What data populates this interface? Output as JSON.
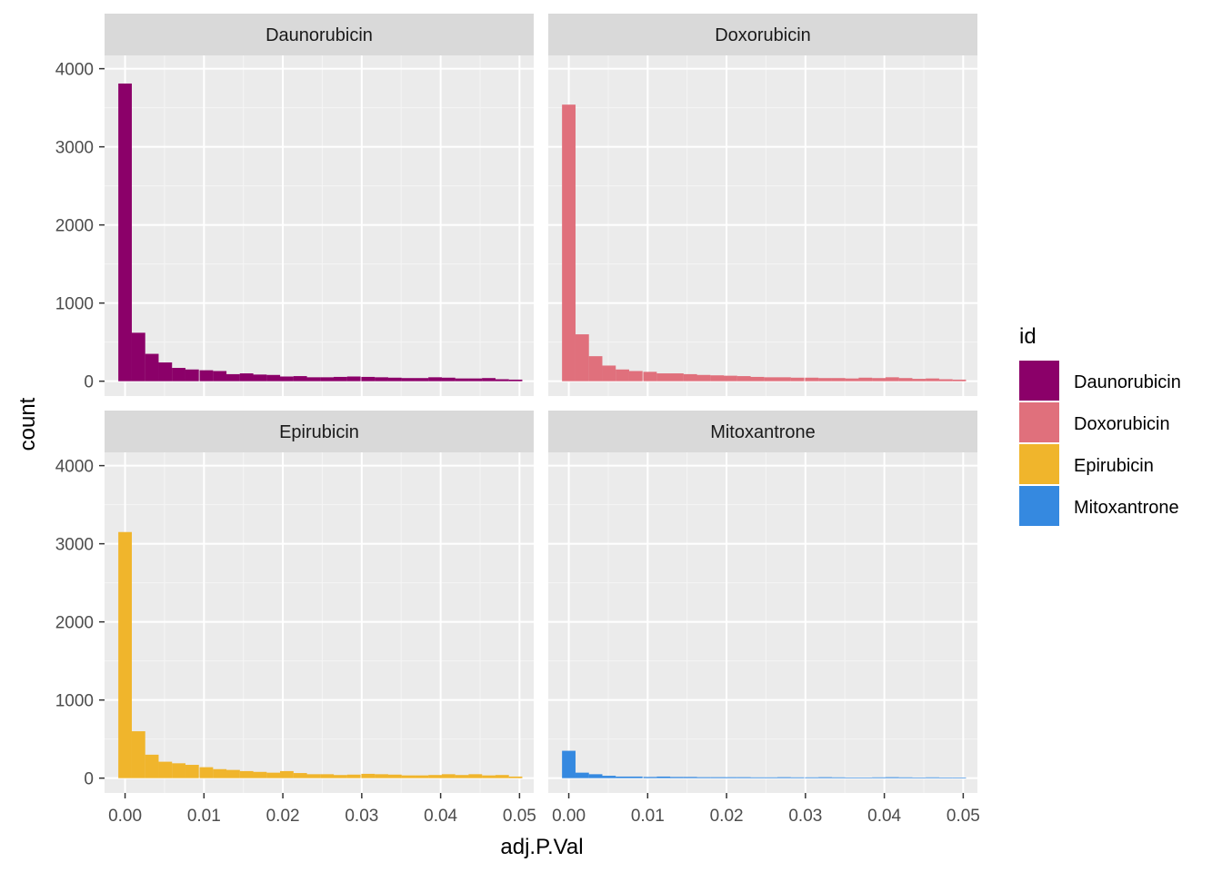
{
  "chart_data": {
    "type": "bar",
    "subtype": "histogram",
    "faceted": true,
    "facet_layout": "2x2",
    "xlabel": "adj.P.Val",
    "ylabel": "count",
    "x_ticks": [
      0.0,
      0.01,
      0.02,
      0.03,
      0.04,
      0.05
    ],
    "x_tick_labels": [
      "0.00",
      "0.01",
      "0.02",
      "0.03",
      "0.04",
      "0.05"
    ],
    "y_ticks": [
      0,
      1000,
      2000,
      3000,
      4000
    ],
    "y_tick_labels": [
      "0",
      "1000",
      "2000",
      "3000",
      "4000"
    ],
    "xlim": [
      -0.0026,
      0.0518
    ],
    "ylim": [
      -190,
      4170
    ],
    "bin_width": 0.00171,
    "x": [
      0.0,
      0.0017,
      0.0034,
      0.0051,
      0.0068,
      0.0085,
      0.0103,
      0.012,
      0.0137,
      0.0154,
      0.0171,
      0.0188,
      0.0205,
      0.0222,
      0.0239,
      0.0256,
      0.0273,
      0.029,
      0.0308,
      0.0325,
      0.0342,
      0.0359,
      0.0376,
      0.0393,
      0.041,
      0.0427,
      0.0444,
      0.0461,
      0.0478,
      0.0495
    ],
    "grid": true,
    "legend_title": "id",
    "legend_position": "right",
    "series": [
      {
        "name": "Daunorubicin",
        "color": "#8B0069",
        "values": [
          3810,
          620,
          350,
          240,
          170,
          150,
          140,
          130,
          90,
          100,
          85,
          80,
          60,
          65,
          50,
          50,
          55,
          60,
          55,
          50,
          45,
          40,
          40,
          50,
          45,
          35,
          35,
          40,
          25,
          20
        ]
      },
      {
        "name": "Doxorubicin",
        "color": "#E0707C",
        "values": [
          3540,
          600,
          320,
          200,
          150,
          130,
          120,
          100,
          100,
          90,
          80,
          75,
          70,
          65,
          55,
          50,
          50,
          45,
          45,
          40,
          40,
          35,
          45,
          40,
          50,
          40,
          30,
          35,
          25,
          20
        ]
      },
      {
        "name": "Epirubicin",
        "color": "#F0B52C",
        "values": [
          3150,
          600,
          300,
          210,
          190,
          170,
          140,
          115,
          105,
          90,
          80,
          70,
          90,
          65,
          50,
          50,
          40,
          45,
          55,
          50,
          45,
          35,
          35,
          40,
          50,
          40,
          50,
          35,
          40,
          20
        ]
      },
      {
        "name": "Mitoxantrone",
        "color": "#3589E0",
        "values": [
          350,
          70,
          50,
          30,
          20,
          20,
          15,
          20,
          15,
          15,
          12,
          12,
          12,
          12,
          10,
          10,
          12,
          10,
          10,
          12,
          10,
          8,
          8,
          10,
          12,
          10,
          8,
          10,
          8,
          8
        ]
      }
    ]
  }
}
